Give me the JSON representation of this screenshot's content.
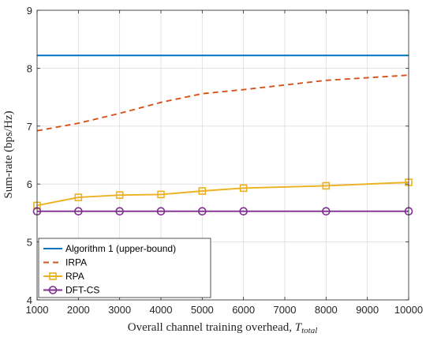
{
  "chart_data": {
    "type": "line",
    "xlabel_main": "Overall channel training overhead, ",
    "xlabel_var": "T",
    "xlabel_sub": "total",
    "ylabel": "Sum-rate (bps/Hz)",
    "xlim": [
      1000,
      10000
    ],
    "ylim": [
      4,
      9
    ],
    "x_ticks": [
      1000,
      2000,
      3000,
      4000,
      5000,
      6000,
      7000,
      8000,
      9000,
      10000
    ],
    "y_ticks": [
      4,
      5,
      6,
      7,
      8,
      9
    ],
    "grid": true,
    "legend_position": "bottom-left",
    "series": [
      {
        "name": "Algorithm 1 (upper-bound)",
        "color": "#0072BD",
        "style": "solid",
        "marker": "none",
        "x": [
          1000,
          10000
        ],
        "y": [
          8.22,
          8.22
        ]
      },
      {
        "name": "IRPA",
        "color": "#D95319",
        "style": "dashed",
        "marker": "none",
        "x": [
          1000,
          2000,
          3000,
          4000,
          5000,
          6000,
          8000,
          10000
        ],
        "y": [
          6.92,
          7.05,
          7.22,
          7.41,
          7.56,
          7.63,
          7.79,
          7.88
        ]
      },
      {
        "name": "RPA",
        "color": "#EDB120",
        "style": "solid",
        "marker": "square",
        "x": [
          1000,
          2000,
          3000,
          4000,
          5000,
          6000,
          8000,
          10000
        ],
        "y": [
          5.63,
          5.77,
          5.81,
          5.82,
          5.88,
          5.93,
          5.97,
          6.03
        ]
      },
      {
        "name": "DFT-CS",
        "color": "#7E2F8E",
        "style": "solid",
        "marker": "circle",
        "x": [
          1000,
          2000,
          3000,
          4000,
          5000,
          6000,
          8000,
          10000
        ],
        "y": [
          5.53,
          5.53,
          5.53,
          5.53,
          5.53,
          5.53,
          5.53,
          5.53
        ]
      }
    ]
  }
}
